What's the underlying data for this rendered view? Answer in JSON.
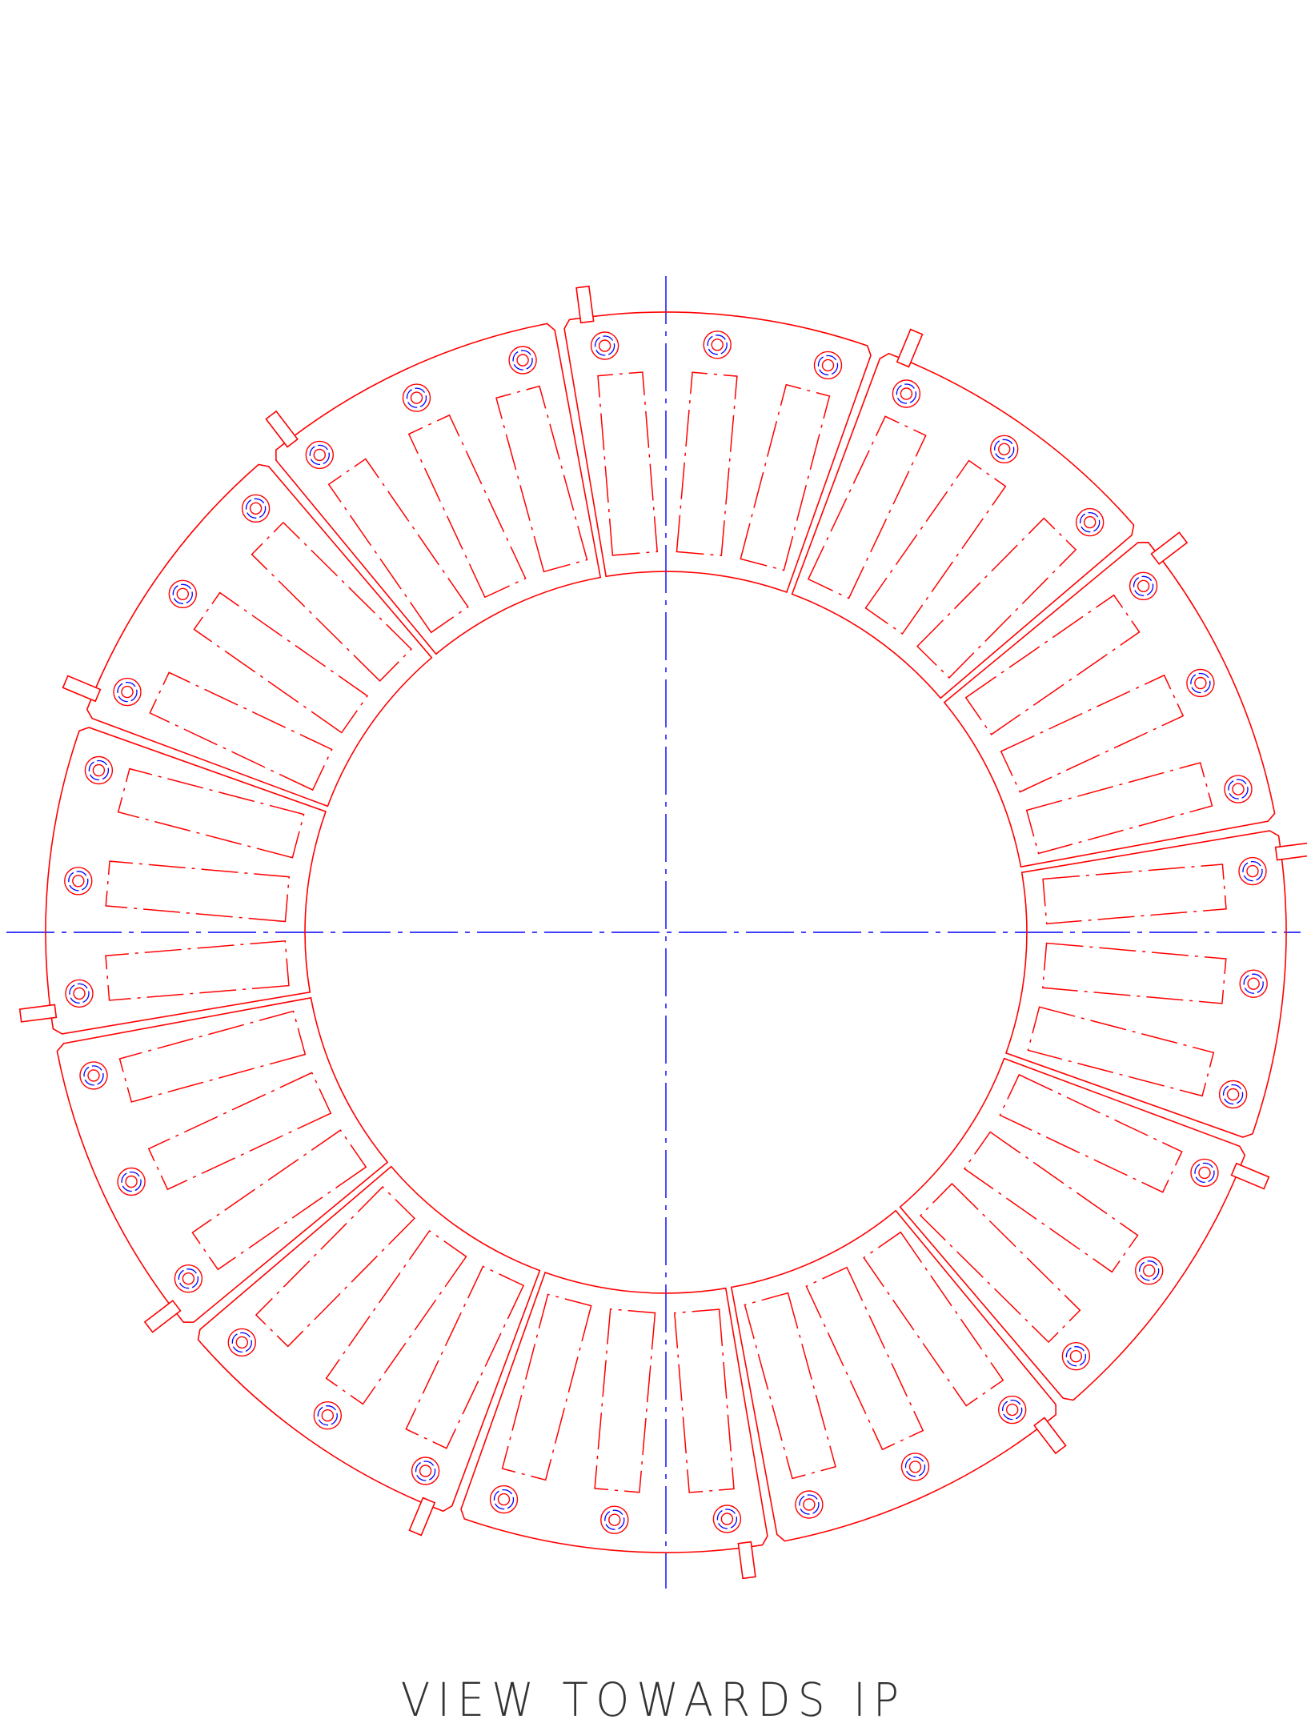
{
  "drawing": {
    "title": "VIEW TOWARDS IP",
    "segment_count": 12,
    "pockets_per_segment": 3,
    "colors": {
      "outline": "#ff0000",
      "centerline": "#0000ff",
      "title": "#333333"
    }
  }
}
